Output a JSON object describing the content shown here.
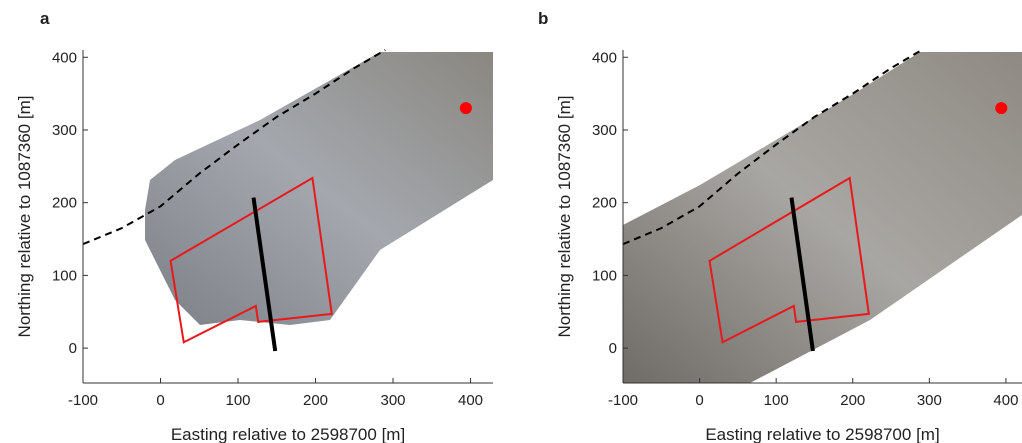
{
  "chart_data": [
    {
      "type": "map",
      "panel_label": "a",
      "xlabel": "Easting relative to 2598700 [m]",
      "ylabel": "Northing relative to 1087360 [m]",
      "xlim": [
        -100,
        429
      ],
      "ylim": [
        -48,
        410
      ],
      "xticks": [
        -100,
        0,
        100,
        200,
        300,
        400
      ],
      "yticks": [
        0,
        100,
        200,
        300,
        400
      ],
      "point": {
        "x": [
          394
        ],
        "y": [
          330
        ],
        "color": "#ff0000"
      },
      "polygon": {
        "x": [
          13,
          30,
          123,
          126,
          221,
          196
        ],
        "y": [
          120,
          8,
          58,
          36,
          47,
          234
        ],
        "color": "#e8191c"
      },
      "line": {
        "x": [
          120,
          148
        ],
        "y": [
          207,
          -4
        ],
        "color": "#000000"
      },
      "dashed": {
        "x": [
          -100,
          -50,
          0,
          50,
          100,
          150,
          200,
          250,
          290
        ],
        "y": [
          143,
          165,
          195,
          240,
          280,
          318,
          350,
          385,
          410
        ],
        "color": "#000000"
      }
    },
    {
      "type": "map",
      "panel_label": "b",
      "xlabel": "Easting relative to 2598700 [m]",
      "ylabel": "Northing relative to 1087360 [m]",
      "xlim": [
        -100,
        421
      ],
      "ylim": [
        -48,
        410
      ],
      "xticks": [
        -100,
        0,
        100,
        200,
        300,
        400
      ],
      "yticks": [
        0,
        100,
        200,
        300,
        400
      ],
      "point": {
        "x": [
          394
        ],
        "y": [
          330
        ],
        "color": "#ff0000"
      },
      "polygon": {
        "x": [
          13,
          30,
          123,
          126,
          221,
          196
        ],
        "y": [
          120,
          8,
          58,
          36,
          47,
          234
        ],
        "color": "#e8191c"
      },
      "line": {
        "x": [
          120,
          148
        ],
        "y": [
          207,
          -4
        ],
        "color": "#000000"
      },
      "dashed": {
        "x": [
          -100,
          -50,
          0,
          50,
          100,
          150,
          200,
          250,
          290
        ],
        "y": [
          143,
          165,
          195,
          240,
          280,
          318,
          350,
          385,
          410
        ],
        "color": "#000000"
      }
    }
  ]
}
